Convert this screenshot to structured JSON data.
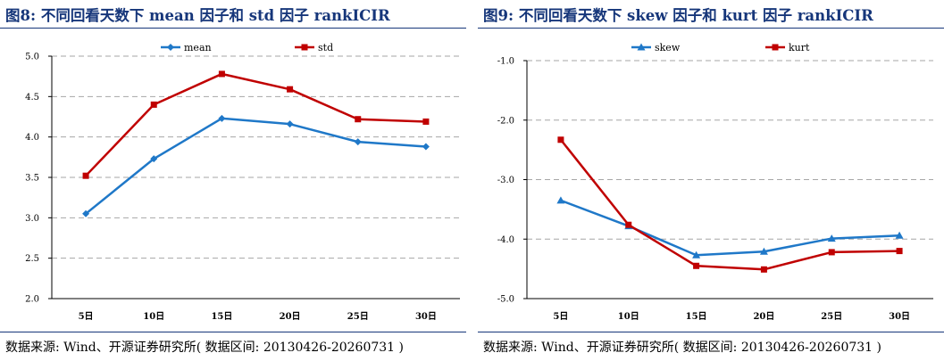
{
  "source_note": "数据来源: Wind、开源证券研究所( 数据区间: 20130426-20260731 )",
  "chart_data": [
    {
      "type": "line",
      "title": "图8:  不同回看天数下 mean 因子和 std 因子 rankICIR",
      "categories": [
        "5日",
        "10日",
        "15日",
        "20日",
        "25日",
        "30日"
      ],
      "y_ticks": [
        "5.0",
        "4.5",
        "4.0",
        "3.5",
        "3.0",
        "2.5",
        "2.0"
      ],
      "ylim": [
        2.0,
        5.0
      ],
      "ystep": 0.5,
      "grid": "horizontal dashed",
      "legend_position": "top-center",
      "series": [
        {
          "name": "mean",
          "color": "#1f78c8",
          "marker": "diamond",
          "values": [
            3.05,
            3.73,
            4.23,
            4.16,
            3.94,
            3.88
          ]
        },
        {
          "name": "std",
          "color": "#c00000",
          "marker": "square",
          "values": [
            3.52,
            4.4,
            4.78,
            4.59,
            4.22,
            4.19
          ]
        }
      ]
    },
    {
      "type": "line",
      "title": "图9:  不同回看天数下 skew 因子和 kurt 因子 rankICIR",
      "categories": [
        "5日",
        "10日",
        "15日",
        "20日",
        "25日",
        "30日"
      ],
      "y_ticks": [
        "-1.0",
        "-2.0",
        "-3.0",
        "-4.0",
        "-5.0"
      ],
      "ylim": [
        -5.0,
        -1.0
      ],
      "ystep": 1.0,
      "grid": "horizontal dashed",
      "legend_position": "top-center",
      "series": [
        {
          "name": "skew",
          "color": "#1f78c8",
          "marker": "triangle",
          "values": [
            -3.35,
            -3.78,
            -4.27,
            -4.21,
            -3.99,
            -3.94
          ]
        },
        {
          "name": "kurt",
          "color": "#c00000",
          "marker": "square",
          "values": [
            -2.33,
            -3.76,
            -4.45,
            -4.51,
            -4.22,
            -4.2
          ]
        }
      ]
    }
  ]
}
